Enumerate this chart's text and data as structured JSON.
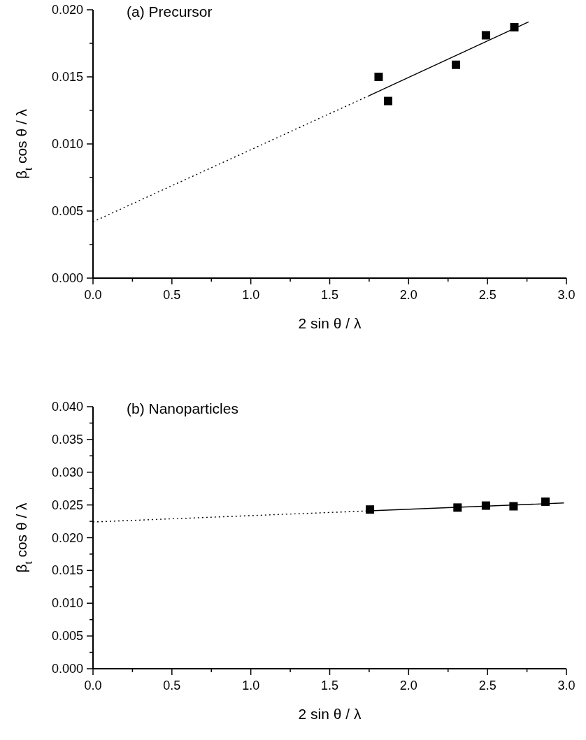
{
  "chart_data": [
    {
      "type": "scatter",
      "title": "(a) Precursor",
      "xlabel": "2 sin θ / λ",
      "ylabel": "β$_{t}$ cos θ / λ",
      "marker": "square",
      "grid": false,
      "xlim": [
        0,
        3
      ],
      "xticks": [
        {
          "value": 0,
          "label": "0.0"
        },
        {
          "value": 0.25,
          "label": null
        },
        0.5,
        {
          "value": 0.75,
          "label": null
        },
        {
          "value": 1,
          "label": "1.0"
        },
        {
          "value": 1.25,
          "label": null
        },
        1.5,
        {
          "value": 1.75,
          "label": null
        },
        {
          "value": 2,
          "label": "2.0"
        },
        {
          "value": 2.25,
          "label": null
        },
        2.5,
        {
          "value": 2.75,
          "label": null
        },
        {
          "value": 3,
          "label": "3.0"
        }
      ],
      "ylim": [
        0,
        0.02
      ],
      "yticks": [
        {
          "value": 0,
          "label": "0.000"
        },
        {
          "value": 0.0025,
          "label": null
        },
        0.005,
        {
          "value": 0.0075,
          "label": null
        },
        {
          "value": 0.01,
          "label": "0.010"
        },
        {
          "value": 0.0125,
          "label": null
        },
        0.015,
        {
          "value": 0.0175,
          "label": null
        },
        {
          "value": 0.02,
          "label": "0.020"
        }
      ],
      "series": [
        {
          "color": "#000000",
          "x": [
            1.81,
            1.87,
            2.3,
            2.49,
            2.67
          ],
          "values": [
            0.015,
            0.0132,
            0.0159,
            0.0181,
            0.0187
          ]
        },
        {
          "type": "line",
          "color": "#000000",
          "line_style": "dotted",
          "marker": "none",
          "x": [
            0,
            1.75
          ],
          "values": [
            0.0042,
            0.0136
          ]
        },
        {
          "type": "line",
          "color": "#000000",
          "line_style": "solid",
          "marker": "none",
          "x": [
            1.75,
            2.76
          ],
          "values": [
            0.0136,
            0.0191
          ]
        }
      ]
    },
    {
      "type": "scatter",
      "title": "(b) Nanoparticles",
      "xlabel": "2 sin θ / λ",
      "ylabel": "β$_{t}$ cos θ / λ",
      "marker": "square",
      "grid": false,
      "xlim": [
        0,
        3
      ],
      "xticks": [
        {
          "value": 0,
          "label": "0.0"
        },
        {
          "value": 0.25,
          "label": null
        },
        0.5,
        {
          "value": 0.75,
          "label": null
        },
        {
          "value": 1,
          "label": "1.0"
        },
        {
          "value": 1.25,
          "label": null
        },
        1.5,
        {
          "value": 1.75,
          "label": null
        },
        {
          "value": 2,
          "label": "2.0"
        },
        {
          "value": 2.25,
          "label": null
        },
        2.5,
        {
          "value": 2.75,
          "label": null
        },
        {
          "value": 3,
          "label": "3.0"
        }
      ],
      "ylim": [
        0,
        0.04
      ],
      "yticks": [
        {
          "value": 0,
          "label": "0.000"
        },
        {
          "value": 0.0025,
          "label": null
        },
        0.005,
        {
          "value": 0.0075,
          "label": null
        },
        {
          "value": 0.01,
          "label": "0.010"
        },
        {
          "value": 0.0125,
          "label": null
        },
        0.015,
        {
          "value": 0.0175,
          "label": null
        },
        {
          "value": 0.02,
          "label": "0.020"
        },
        {
          "value": 0.0225,
          "label": null
        },
        0.025,
        {
          "value": 0.0275,
          "label": null
        },
        {
          "value": 0.03,
          "label": "0.030"
        },
        {
          "value": 0.0325,
          "label": null
        },
        0.035,
        {
          "value": 0.0375,
          "label": null
        },
        {
          "value": 0.04,
          "label": "0.040"
        }
      ],
      "series": [
        {
          "color": "#000000",
          "x": [
            1.755,
            2.31,
            2.49,
            2.665,
            2.867
          ],
          "values": [
            0.0243,
            0.0246,
            0.0249,
            0.0248,
            0.0255
          ]
        },
        {
          "type": "line",
          "color": "#000000",
          "line_style": "dotted",
          "marker": "none",
          "x": [
            0,
            1.755
          ],
          "values": [
            0.0224,
            0.0241
          ]
        },
        {
          "type": "line",
          "color": "#000000",
          "line_style": "solid",
          "marker": "none",
          "x": [
            1.755,
            2.984
          ],
          "values": [
            0.0241,
            0.0253
          ]
        }
      ]
    }
  ]
}
